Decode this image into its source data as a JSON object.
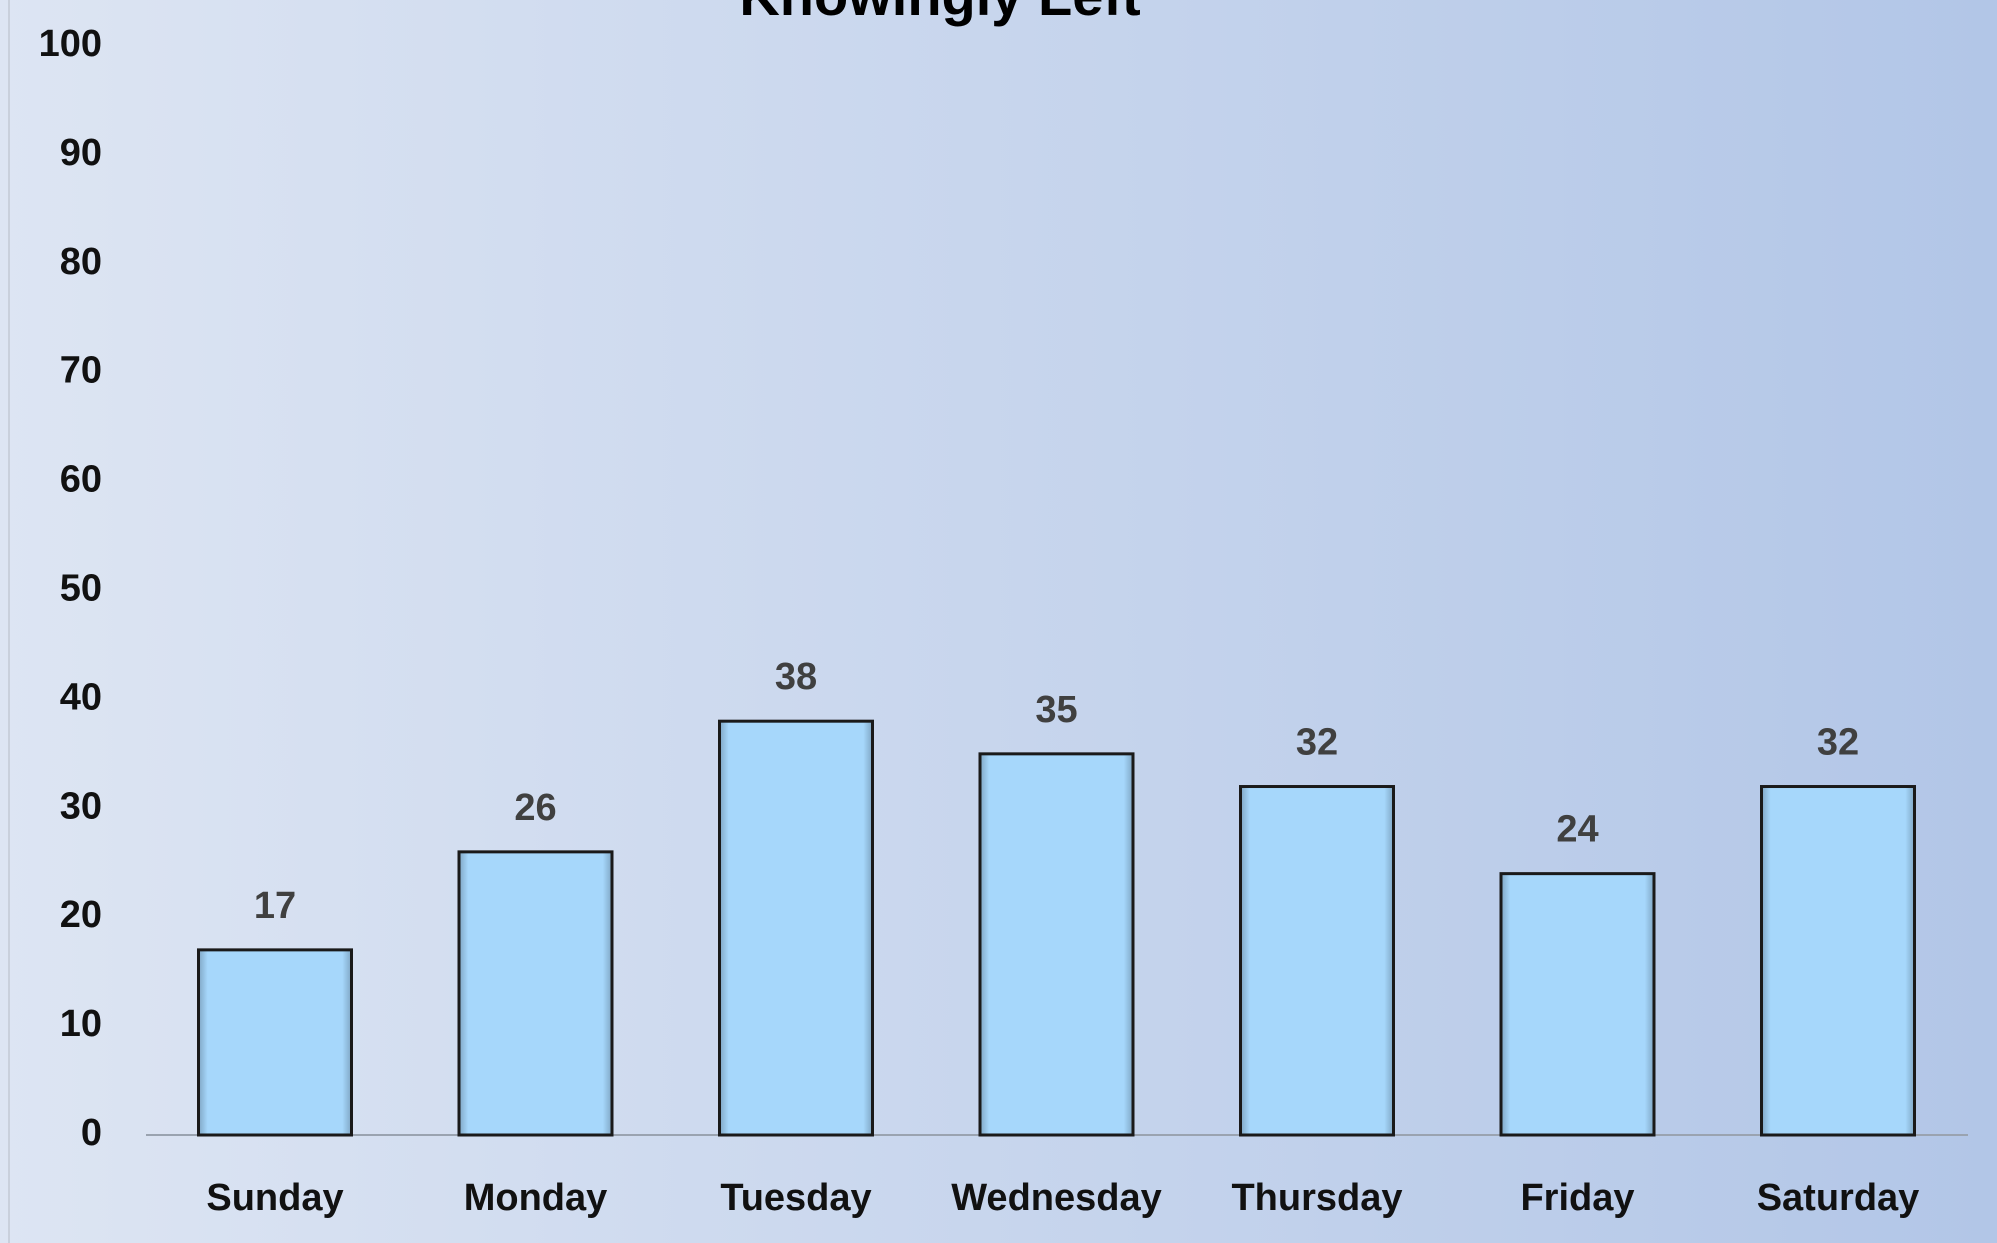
{
  "chart_data": {
    "type": "bar",
    "title": "Knowingly Left",
    "categories": [
      "Sunday",
      "Monday",
      "Tuesday",
      "Wednesday",
      "Thursday",
      "Friday",
      "Saturday"
    ],
    "values": [
      17,
      26,
      38,
      35,
      32,
      24,
      32
    ],
    "color": "#a6d7fb",
    "ylim": [
      0,
      100
    ],
    "yticks": [
      0,
      10,
      20,
      30,
      40,
      50,
      60,
      70,
      80,
      90,
      100
    ],
    "grid": false
  }
}
